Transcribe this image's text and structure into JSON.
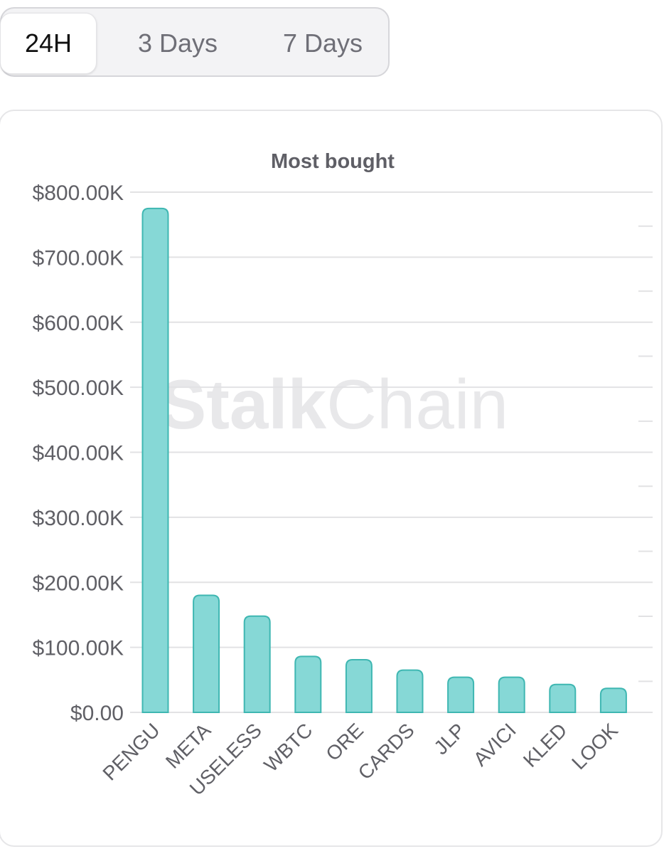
{
  "tabs": [
    {
      "label": "24H",
      "active": true
    },
    {
      "label": "3 Days",
      "active": false
    },
    {
      "label": "7 Days",
      "active": false
    }
  ],
  "watermark": {
    "bold": "Stalk",
    "light": "Chain"
  },
  "colors": {
    "bar_fill": "#86d8d6",
    "bar_stroke": "#3fb7b2",
    "grid": "#e2e2e4",
    "axis_text": "#606066",
    "title_text": "#5f5f66"
  },
  "chart_data": {
    "type": "bar",
    "title": "Most bought",
    "xlabel": "",
    "ylabel": "",
    "categories": [
      "PENGU",
      "META",
      "USELESS",
      "WBTC",
      "ORE",
      "CARDS",
      "JLP",
      "AVICI",
      "KLED",
      "LOOK"
    ],
    "values": [
      775000,
      180000,
      148000,
      86000,
      81000,
      65000,
      54000,
      54000,
      43000,
      37000
    ],
    "ylim": [
      0,
      800000
    ],
    "yticks": [
      {
        "value": 0,
        "label": "$0.00"
      },
      {
        "value": 100000,
        "label": "$100.00K"
      },
      {
        "value": 200000,
        "label": "$200.00K"
      },
      {
        "value": 300000,
        "label": "$300.00K"
      },
      {
        "value": 400000,
        "label": "$400.00K"
      },
      {
        "value": 500000,
        "label": "$500.00K"
      },
      {
        "value": 600000,
        "label": "$600.00K"
      },
      {
        "value": 700000,
        "label": "$700.00K"
      },
      {
        "value": 800000,
        "label": "$800.00K"
      }
    ],
    "grid": true,
    "legend": "none"
  }
}
